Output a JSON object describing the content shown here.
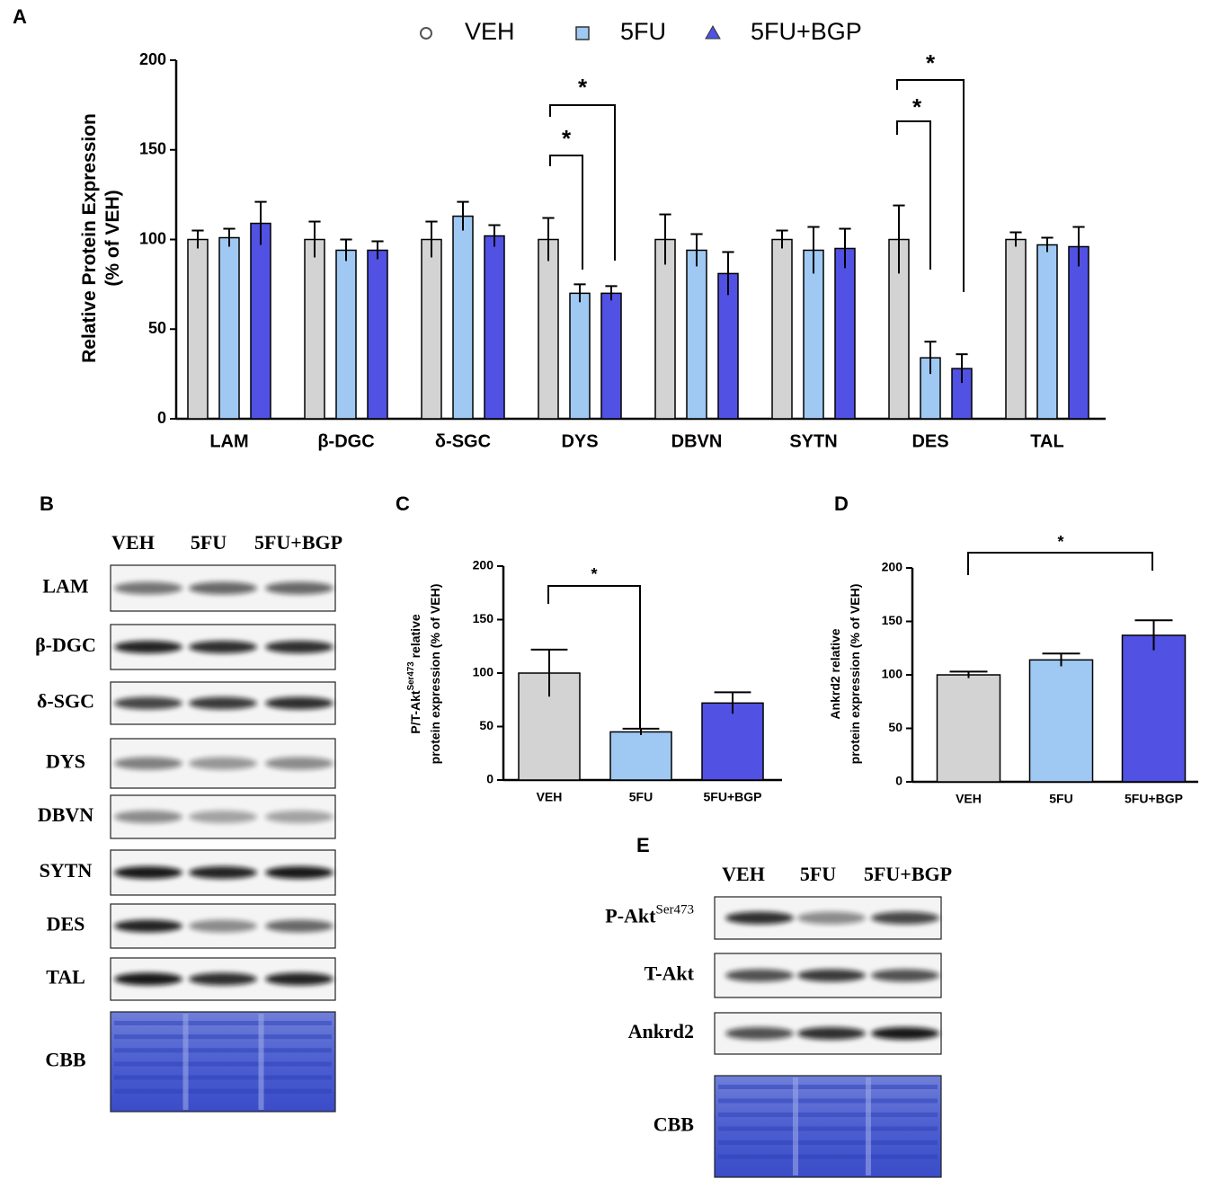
{
  "panels": [
    "A",
    "B",
    "C",
    "D",
    "E"
  ],
  "chart_data": [
    {
      "type": "bar",
      "ylabel": [
        "Relative Protein Expression",
        "(% of VEH)"
      ],
      "categories": [
        "LAM",
        "β-DGC",
        "δ-SGC",
        "DYS",
        "DBVN",
        "SYTN",
        "DES",
        "TAL"
      ],
      "series": [
        {
          "name": "VEH",
          "color": "#d3d3d3",
          "marker": "circle",
          "values": [
            100,
            100,
            100,
            100,
            100,
            100,
            100,
            100
          ],
          "errors": [
            5,
            10,
            10,
            12,
            14,
            5,
            19,
            4
          ]
        },
        {
          "name": "5FU",
          "color": "#9fc9f3",
          "marker": "square",
          "values": [
            101,
            94,
            113,
            70,
            94,
            94,
            34,
            97
          ],
          "errors": [
            5,
            6,
            8,
            5,
            9,
            13,
            9,
            4
          ]
        },
        {
          "name": "5FU+BGP",
          "color": "#5151e3",
          "marker": "triangle",
          "values": [
            109,
            94,
            102,
            70,
            81,
            95,
            28,
            96
          ],
          "errors": [
            12,
            5,
            6,
            4,
            12,
            11,
            8,
            11
          ]
        }
      ],
      "ylim": [
        0,
        200
      ],
      "yticks": [
        0,
        50,
        100,
        150,
        200
      ],
      "annotations": [
        "*",
        "*",
        "*",
        "*"
      ]
    },
    {
      "type": "bar",
      "ylabel": [
        "P/T-Akt",
        "Ser473",
        " relative",
        "protein expression (% of VEH)"
      ],
      "categories": [
        "VEH",
        "5FU",
        "5FU+BGP"
      ],
      "values": [
        100,
        45,
        72
      ],
      "errors": [
        22,
        3,
        10
      ],
      "colors": [
        "#d3d3d3",
        "#9fc9f3",
        "#5151e3"
      ],
      "ylim": [
        0,
        200
      ],
      "yticks": [
        0,
        50,
        100,
        150,
        200
      ],
      "annotations": [
        "*"
      ]
    },
    {
      "type": "bar",
      "ylabel": [
        "Ankrd2 relative",
        "protein expression (% of VEH)"
      ],
      "categories": [
        "VEH",
        "5FU",
        "5FU+BGP"
      ],
      "values": [
        100,
        114,
        137
      ],
      "errors": [
        3,
        6,
        14
      ],
      "colors": [
        "#d3d3d3",
        "#9fc9f3",
        "#5151e3"
      ],
      "ylim": [
        0,
        200
      ],
      "yticks": [
        0,
        50,
        100,
        150,
        200
      ],
      "annotations": [
        "*"
      ]
    }
  ],
  "blots": [
    {
      "columns": [
        "VEH",
        "5FU",
        "5FU+BGP"
      ],
      "rows": [
        {
          "label": "LAM"
        },
        {
          "label": "β-DGC"
        },
        {
          "label": "δ-SGC"
        },
        {
          "label": "DYS"
        },
        {
          "label": "DBVN"
        },
        {
          "label": "SYTN"
        },
        {
          "label": "DES"
        },
        {
          "label": "TAL"
        },
        {
          "label": "CBB"
        }
      ]
    },
    {
      "columns": [
        "VEH",
        "5FU",
        "5FU+BGP"
      ],
      "rows": [
        {
          "label": "P-Akt",
          "superscript": "Ser473"
        },
        {
          "label": "T-Akt"
        },
        {
          "label": "Ankrd2"
        },
        {
          "label": "CBB"
        }
      ]
    }
  ]
}
